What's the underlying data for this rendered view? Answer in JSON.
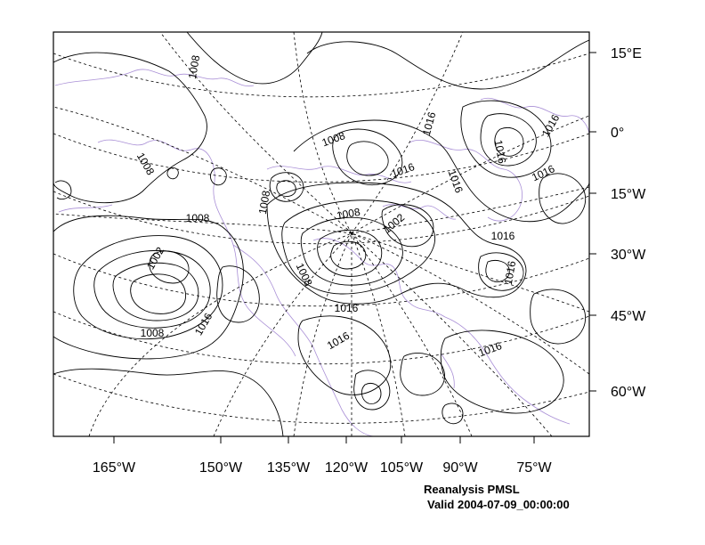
{
  "map": {
    "bottom_axis_labels": [
      "165°W",
      "150°W",
      "135°W",
      "120°W",
      "105°W",
      "90°W",
      "75°W"
    ],
    "right_axis_labels": [
      "15°E",
      "0°",
      "15°W",
      "30°W",
      "45°W",
      "60°W"
    ],
    "contour_labels": [
      "1008",
      "1008",
      "1008",
      "1008",
      "1008",
      "1008",
      "1008",
      "1008",
      "1002",
      "1002",
      "1016",
      "1016",
      "1016",
      "1016",
      "1016",
      "1016",
      "1016",
      "1016",
      "1016"
    ],
    "colors": {
      "contour": "#000000",
      "coastline": "#a98fd6",
      "grid": "#000000"
    }
  },
  "footer": {
    "title": "Reanalysis PMSL",
    "valid": "Valid 2004-07-09_00:00:00"
  }
}
